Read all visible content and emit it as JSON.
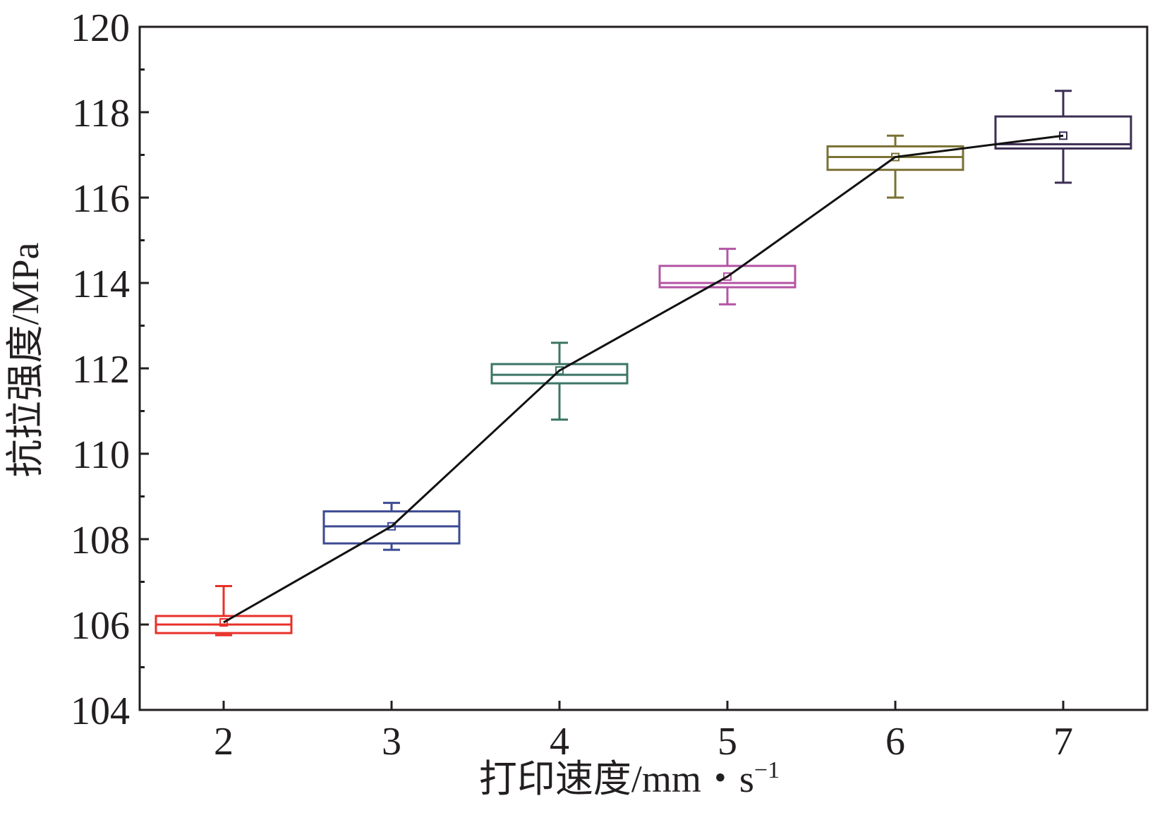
{
  "chart_data": {
    "type": "box",
    "xlabel": "打印速度/mm・s",
    "xlabel_superscript": "−1",
    "ylabel": "抗拉强度/MPa",
    "x_ticks": [
      "2",
      "3",
      "4",
      "5",
      "6",
      "7"
    ],
    "y_ticks": [
      "104",
      "106",
      "108",
      "110",
      "112",
      "114",
      "116",
      "118",
      "120"
    ],
    "xlim": [
      1.5,
      7.5
    ],
    "ylim": [
      104,
      120
    ],
    "grid": false,
    "legend": "none",
    "boxes": [
      {
        "x": 2,
        "color": "#e8302a",
        "whisker_low": 105.75,
        "q1": 105.8,
        "median": 106.0,
        "q3": 106.2,
        "whisker_high": 106.9,
        "mean": 106.05
      },
      {
        "x": 3,
        "color": "#3c4a93",
        "whisker_low": 107.75,
        "q1": 107.9,
        "median": 108.3,
        "q3": 108.65,
        "whisker_high": 108.85,
        "mean": 108.3
      },
      {
        "x": 4,
        "color": "#3c7566",
        "whisker_low": 110.8,
        "q1": 111.65,
        "median": 111.85,
        "q3": 112.1,
        "whisker_high": 112.6,
        "mean": 111.95
      },
      {
        "x": 5,
        "color": "#b354a4",
        "whisker_low": 113.5,
        "q1": 113.9,
        "median": 114.0,
        "q3": 114.4,
        "whisker_high": 114.8,
        "mean": 114.15
      },
      {
        "x": 6,
        "color": "#7a7134",
        "whisker_low": 116.0,
        "q1": 116.65,
        "median": 116.95,
        "q3": 117.2,
        "whisker_high": 117.45,
        "mean": 116.95
      },
      {
        "x": 7,
        "color": "#3b2d53",
        "whisker_low": 116.35,
        "q1": 117.15,
        "median": 117.25,
        "q3": 117.9,
        "whisker_high": 118.5,
        "mean": 117.45
      }
    ],
    "mean_line": {
      "color": "#111111",
      "x": [
        2,
        3,
        4,
        5,
        6,
        7
      ],
      "y": [
        106.05,
        108.3,
        111.95,
        114.15,
        116.95,
        117.45
      ]
    }
  }
}
